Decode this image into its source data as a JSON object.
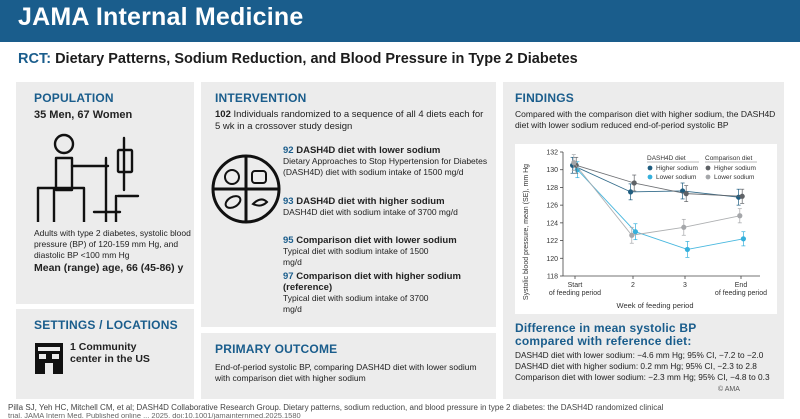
{
  "header": {
    "journal": "JAMA Internal Medicine"
  },
  "title": {
    "tag": "RCT:",
    "text": "Dietary Patterns, Sodium Reduction, and Blood Pressure in Type 2 Diabetes"
  },
  "population": {
    "heading": "POPULATION",
    "counts": "35 Men, 67 Women",
    "description": "Adults with type 2 diabetes, systolic blood pressure (BP) of 120-159 mm Hg, and diastolic BP <100 mm Hg",
    "age": "Mean (range) age, 66 (45-86) y"
  },
  "settings": {
    "heading": "SETTINGS / LOCATIONS",
    "count": "1",
    "label_a": "Community",
    "label_b": "center in the US"
  },
  "intervention": {
    "heading": "INTERVENTION",
    "count": "102",
    "intro": "Individuals randomized to a sequence of all 4 diets each for 5 wk in a crossover study design",
    "diets": [
      {
        "n": "92",
        "name": "DASH4D diet with lower sodium",
        "desc": "Dietary Approaches to Stop Hypertension for Diabetes (DASH4D) diet with sodium intake of 1500 mg/d"
      },
      {
        "n": "93",
        "name": "DASH4D diet with higher sodium",
        "desc": "DASH4D diet with sodium intake of 3700 mg/d"
      },
      {
        "n": "95",
        "name": "Comparison diet with lower sodium",
        "desc": "Typical diet with sodium intake of 1500 mg/d"
      },
      {
        "n": "97",
        "name": "Comparison diet with higher sodium (reference)",
        "desc": "Typical diet with sodium intake of 3700 mg/d"
      }
    ]
  },
  "outcome": {
    "heading": "PRIMARY OUTCOME",
    "text": "End-of-period systolic BP, comparing DASH4D diet with lower sodium with comparison diet with higher sodium"
  },
  "findings": {
    "heading": "FINDINGS",
    "summary": "Compared with the comparison diet with higher sodium, the DASH4D diet with lower sodium reduced end-of-period systolic BP",
    "difference_heading": "Difference in mean systolic BP compared with reference diet:",
    "differences": [
      "DASH4D diet with lower sodium: −4.6 mm Hg; 95% CI, −7.2 to −2.0",
      "DASH4D diet with higher sodium: 0.2 mm Hg; 95% CI, −2.3 to 2.8",
      "Comparison diet with lower sodium: −2.3 mm Hg; 95% CI, −4.8 to 0.3"
    ],
    "copyright": "© AMA"
  },
  "footer": {
    "citation": "Pilla SJ, Yeh HC, Mitchell CM, et al; DASH4D Collaborative Research Group. Dietary patterns, sodium reduction, and blood pressure in type 2 diabetes: the DASH4D randomized clinical",
    "citation_cont": "trial. JAMA Intern Med. Published online ... 2025. doi:10.1001/jamainternmed.2025.1580"
  },
  "colors": {
    "brand": "#1a5d8c",
    "dash_higher": "#1f5d80",
    "dash_lower": "#35b0dc",
    "comp_higher": "#5f6266",
    "comp_lower": "#a5a7aa",
    "panel": "#ececec"
  },
  "chart_data": {
    "type": "line",
    "ylabel": "Systolic blood pressure, mean (SE), mm Hg",
    "xlabel": "Week of feeding period",
    "x": [
      "Start of feeding period",
      "2",
      "3",
      "End of feeding period"
    ],
    "ylim": [
      118,
      132
    ],
    "yticks": [
      118,
      120,
      122,
      124,
      126,
      128,
      130,
      132
    ],
    "legend_groups": [
      "DASH4D diet",
      "Comparison diet"
    ],
    "series": [
      {
        "name": "Higher sodium",
        "group": "DASH4D diet",
        "color": "#1f5d80",
        "values": [
          130.5,
          127.5,
          127.6,
          126.9
        ],
        "err": [
          0.9,
          0.9,
          0.9,
          0.9
        ]
      },
      {
        "name": "Lower sodium",
        "group": "DASH4D diet",
        "color": "#35b0dc",
        "values": [
          130.0,
          123.0,
          121.0,
          122.2
        ],
        "err": [
          0.9,
          0.9,
          0.9,
          0.8
        ]
      },
      {
        "name": "Higher sodium",
        "group": "Comparison diet",
        "color": "#5f6266",
        "values": [
          130.5,
          128.5,
          127.3,
          127.0
        ],
        "err": [
          0.9,
          0.9,
          0.9,
          0.8
        ]
      },
      {
        "name": "Lower sodium",
        "group": "Comparison diet",
        "color": "#a5a7aa",
        "values": [
          130.8,
          122.6,
          123.5,
          124.8
        ],
        "err": [
          0.9,
          0.9,
          0.9,
          0.8
        ]
      }
    ]
  }
}
